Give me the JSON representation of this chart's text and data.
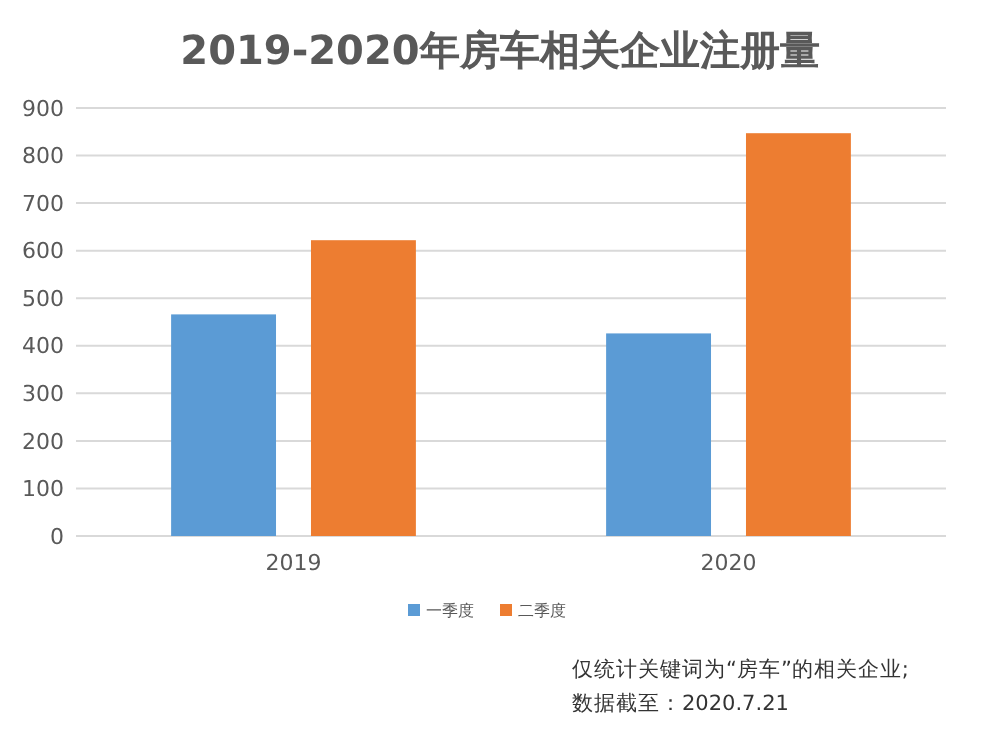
{
  "chart_data": {
    "type": "bar",
    "title": "2019-2020年房车相关企业注册量",
    "categories": [
      "2019",
      "2020"
    ],
    "series": [
      {
        "name": "一季度",
        "color": "#5b9bd5",
        "values": [
          466,
          426
        ]
      },
      {
        "name": "二季度",
        "color": "#ed7d31",
        "values": [
          622,
          847
        ]
      }
    ],
    "ylim": [
      0,
      900
    ],
    "yticks": [
      0,
      100,
      200,
      300,
      400,
      500,
      600,
      700,
      800,
      900
    ],
    "grid": "y",
    "legend": "bottom",
    "annotations": [
      "仅统计关键词为“房车”的相关企业;",
      "数据截至：2020.7.21"
    ]
  }
}
